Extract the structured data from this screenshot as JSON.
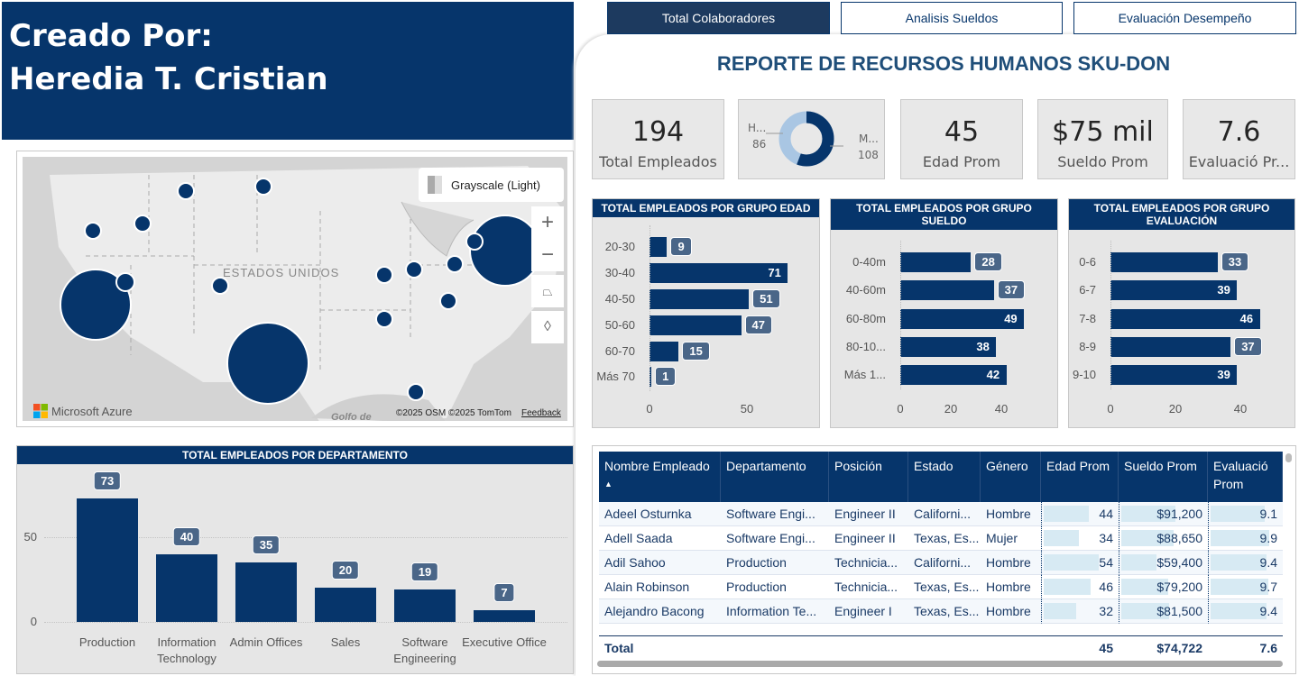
{
  "header": {
    "line1": "Creado Por:",
    "line2": "Heredia T. Cristian"
  },
  "tabs": [
    {
      "label": "Total Colaboradores",
      "active": true
    },
    {
      "label": "Analisis Sueldos"
    },
    {
      "label": "Evaluación Desempeño"
    }
  ],
  "title": "REPORTE DE RECURSOS HUMANOS SKU-DON",
  "kpis": {
    "total": {
      "value": "194",
      "label": "Total Empleados"
    },
    "edad": {
      "value": "45",
      "label": "Edad Prom"
    },
    "sueldo": {
      "value": "$75 mil",
      "label": "Sueldo Prom"
    },
    "eval": {
      "value": "7.6",
      "label": "Evaluació Pr..."
    }
  },
  "gender_donut": {
    "h_label": "H...",
    "h_value": "86",
    "m_label": "M...",
    "m_value": "108",
    "colors": {
      "H": "#a9c6e3",
      "M": "#06356b"
    }
  },
  "map": {
    "style_label": "Grayscale (Light)",
    "country_label": "ESTADOS UNIDOS",
    "gulf_label": "Golfo de",
    "brand": "Microsoft Azure",
    "copyright": "©2025 OSM  ©2025 TomTom",
    "feedback": "Feedback",
    "zoom_in": "+",
    "zoom_out": "−"
  },
  "chart_data": [
    {
      "type": "bar",
      "orientation": "horizontal",
      "title": "TOTAL EMPLEADOS POR GRUPO EDAD",
      "categories": [
        "20-30",
        "30-40",
        "40-50",
        "50-60",
        "60-70",
        "Más 70"
      ],
      "values": [
        9,
        71,
        51,
        47,
        15,
        1
      ],
      "xticks": [
        0,
        50
      ]
    },
    {
      "type": "bar",
      "orientation": "horizontal",
      "title": "TOTAL EMPLEADOS POR GRUPO SUELDO",
      "categories": [
        "0-40m",
        "40-60m",
        "60-80m",
        "80-10...",
        "Más 1..."
      ],
      "values": [
        28,
        37,
        49,
        38,
        42
      ],
      "xticks": [
        0,
        20,
        40
      ]
    },
    {
      "type": "bar",
      "orientation": "horizontal",
      "title": "TOTAL EMPLEADOS POR GRUPO EVALUACIÓN",
      "categories": [
        "0-6",
        "6-7",
        "7-8",
        "8-9",
        "9-10"
      ],
      "values": [
        33,
        39,
        46,
        37,
        39
      ],
      "xticks": [
        0,
        20,
        40
      ]
    },
    {
      "type": "bar",
      "orientation": "vertical",
      "title": "TOTAL EMPLEADOS POR DEPARTAMENTO",
      "categories": [
        "Production",
        "Information Technology",
        "Admin Offices",
        "Sales",
        "Software Engineering",
        "Executive Office"
      ],
      "values": [
        73,
        40,
        35,
        20,
        19,
        7
      ],
      "yticks": [
        0,
        50
      ]
    }
  ],
  "table": {
    "columns": [
      "Nombre Empleado",
      "Departamento",
      "Posición",
      "Estado",
      "Género",
      "Edad Prom",
      "Sueldo Prom",
      "Evaluació Prom"
    ],
    "rows": [
      [
        "Adeel Osturnka",
        "Software Engi...",
        "Engineer II",
        "Californi...",
        "Hombre",
        "44",
        "$91,200",
        "9.1"
      ],
      [
        "Adell Saada",
        "Software Engi...",
        "Engineer II",
        "Texas, Es...",
        "Mujer",
        "34",
        "$88,650",
        "9.9"
      ],
      [
        "Adil Sahoo",
        "Production",
        "Technicia...",
        "Californi...",
        "Hombre",
        "54",
        "$59,400",
        "9.4"
      ],
      [
        "Alain Robinson",
        "Production",
        "Technicia...",
        "Texas, Es...",
        "Hombre",
        "46",
        "$79,200",
        "9.7"
      ],
      [
        "Alejandro Bacong",
        "Information Te...",
        "Engineer I",
        "Texas, Es...",
        "Hombre",
        "32",
        "$81,500",
        "9.4"
      ]
    ],
    "total": {
      "label": "Total",
      "edad": "45",
      "sueldo": "$74,722",
      "eval": "7.6"
    }
  },
  "colors": {
    "primary": "#06356b",
    "badge": "#4a6688",
    "databar": "#d7eaf3"
  }
}
